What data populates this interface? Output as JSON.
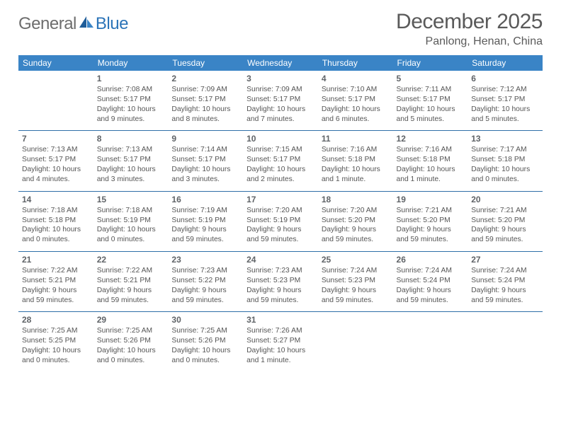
{
  "logo": {
    "general": "General",
    "blue": "Blue"
  },
  "title": "December 2025",
  "location": "Panlong, Henan, China",
  "colors": {
    "header_bg": "#3a84c6",
    "header_text": "#ffffff",
    "separator": "#2f6fa8",
    "logo_gray": "#6d6d6d",
    "logo_blue": "#2b74b8"
  },
  "day_headers": [
    "Sunday",
    "Monday",
    "Tuesday",
    "Wednesday",
    "Thursday",
    "Friday",
    "Saturday"
  ],
  "weeks": [
    [
      null,
      {
        "n": "1",
        "sr": "7:08 AM",
        "ss": "5:17 PM",
        "dl": "10 hours and 9 minutes."
      },
      {
        "n": "2",
        "sr": "7:09 AM",
        "ss": "5:17 PM",
        "dl": "10 hours and 8 minutes."
      },
      {
        "n": "3",
        "sr": "7:09 AM",
        "ss": "5:17 PM",
        "dl": "10 hours and 7 minutes."
      },
      {
        "n": "4",
        "sr": "7:10 AM",
        "ss": "5:17 PM",
        "dl": "10 hours and 6 minutes."
      },
      {
        "n": "5",
        "sr": "7:11 AM",
        "ss": "5:17 PM",
        "dl": "10 hours and 5 minutes."
      },
      {
        "n": "6",
        "sr": "7:12 AM",
        "ss": "5:17 PM",
        "dl": "10 hours and 5 minutes."
      }
    ],
    [
      {
        "n": "7",
        "sr": "7:13 AM",
        "ss": "5:17 PM",
        "dl": "10 hours and 4 minutes."
      },
      {
        "n": "8",
        "sr": "7:13 AM",
        "ss": "5:17 PM",
        "dl": "10 hours and 3 minutes."
      },
      {
        "n": "9",
        "sr": "7:14 AM",
        "ss": "5:17 PM",
        "dl": "10 hours and 3 minutes."
      },
      {
        "n": "10",
        "sr": "7:15 AM",
        "ss": "5:17 PM",
        "dl": "10 hours and 2 minutes."
      },
      {
        "n": "11",
        "sr": "7:16 AM",
        "ss": "5:18 PM",
        "dl": "10 hours and 1 minute."
      },
      {
        "n": "12",
        "sr": "7:16 AM",
        "ss": "5:18 PM",
        "dl": "10 hours and 1 minute."
      },
      {
        "n": "13",
        "sr": "7:17 AM",
        "ss": "5:18 PM",
        "dl": "10 hours and 0 minutes."
      }
    ],
    [
      {
        "n": "14",
        "sr": "7:18 AM",
        "ss": "5:18 PM",
        "dl": "10 hours and 0 minutes."
      },
      {
        "n": "15",
        "sr": "7:18 AM",
        "ss": "5:19 PM",
        "dl": "10 hours and 0 minutes."
      },
      {
        "n": "16",
        "sr": "7:19 AM",
        "ss": "5:19 PM",
        "dl": "9 hours and 59 minutes."
      },
      {
        "n": "17",
        "sr": "7:20 AM",
        "ss": "5:19 PM",
        "dl": "9 hours and 59 minutes."
      },
      {
        "n": "18",
        "sr": "7:20 AM",
        "ss": "5:20 PM",
        "dl": "9 hours and 59 minutes."
      },
      {
        "n": "19",
        "sr": "7:21 AM",
        "ss": "5:20 PM",
        "dl": "9 hours and 59 minutes."
      },
      {
        "n": "20",
        "sr": "7:21 AM",
        "ss": "5:20 PM",
        "dl": "9 hours and 59 minutes."
      }
    ],
    [
      {
        "n": "21",
        "sr": "7:22 AM",
        "ss": "5:21 PM",
        "dl": "9 hours and 59 minutes."
      },
      {
        "n": "22",
        "sr": "7:22 AM",
        "ss": "5:21 PM",
        "dl": "9 hours and 59 minutes."
      },
      {
        "n": "23",
        "sr": "7:23 AM",
        "ss": "5:22 PM",
        "dl": "9 hours and 59 minutes."
      },
      {
        "n": "24",
        "sr": "7:23 AM",
        "ss": "5:23 PM",
        "dl": "9 hours and 59 minutes."
      },
      {
        "n": "25",
        "sr": "7:24 AM",
        "ss": "5:23 PM",
        "dl": "9 hours and 59 minutes."
      },
      {
        "n": "26",
        "sr": "7:24 AM",
        "ss": "5:24 PM",
        "dl": "9 hours and 59 minutes."
      },
      {
        "n": "27",
        "sr": "7:24 AM",
        "ss": "5:24 PM",
        "dl": "9 hours and 59 minutes."
      }
    ],
    [
      {
        "n": "28",
        "sr": "7:25 AM",
        "ss": "5:25 PM",
        "dl": "10 hours and 0 minutes."
      },
      {
        "n": "29",
        "sr": "7:25 AM",
        "ss": "5:26 PM",
        "dl": "10 hours and 0 minutes."
      },
      {
        "n": "30",
        "sr": "7:25 AM",
        "ss": "5:26 PM",
        "dl": "10 hours and 0 minutes."
      },
      {
        "n": "31",
        "sr": "7:26 AM",
        "ss": "5:27 PM",
        "dl": "10 hours and 1 minute."
      },
      null,
      null,
      null
    ]
  ],
  "labels": {
    "sunrise": "Sunrise: ",
    "sunset": "Sunset: ",
    "daylight": "Daylight: "
  }
}
